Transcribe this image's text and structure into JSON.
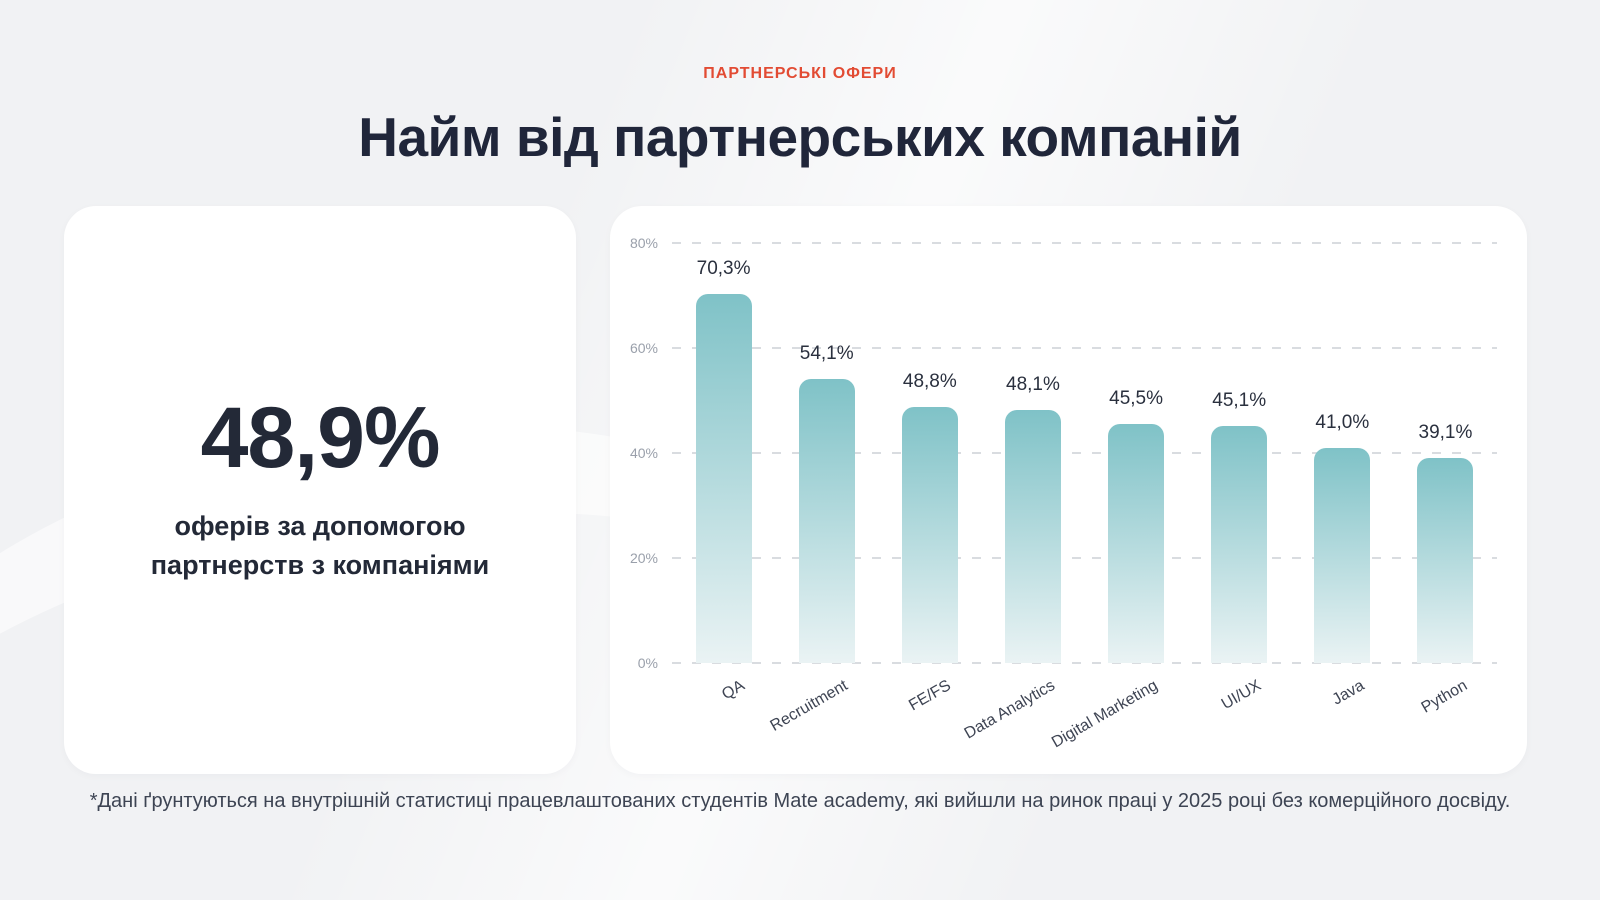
{
  "page": {
    "eyebrow": "ПАРТНЕРСЬКІ ОФЕРИ",
    "title": "Найм від партнерських компаній",
    "footnote": "*Дані ґрунтуються на внутрішній статистиці працевлаштованих студентів Mate academy, які вийшли на ринок праці у 2025 році без комерційного досвіду."
  },
  "stat_card": {
    "value": "48,9%",
    "caption": "оферів за допомогою партнерств з компаніями"
  },
  "chart_data": {
    "type": "bar",
    "categories": [
      "QA",
      "Recruitment",
      "FE/FS",
      "Data Analytics",
      "Digital Marketing",
      "UI/UX",
      "Java",
      "Python"
    ],
    "values": [
      70.3,
      54.1,
      48.8,
      48.1,
      45.5,
      45.1,
      41.0,
      39.1
    ],
    "value_labels": [
      "70,3%",
      "54,1%",
      "48,8%",
      "48,1%",
      "45,5%",
      "45,1%",
      "41,0%",
      "39,1%"
    ],
    "title": "",
    "xlabel": "",
    "ylabel": "",
    "ylim": [
      0,
      80
    ],
    "yticks": [
      "0%",
      "20%",
      "40%",
      "60%",
      "80%"
    ],
    "grid": "horizontal-dashed",
    "legend": "none",
    "bar_color_top": "#7fc2c7",
    "bar_color_bottom": "#eaf3f4"
  },
  "colors": {
    "background": "#f1f2f4",
    "card": "#ffffff",
    "accent_red": "#e24b33",
    "heading_dark": "#20263a",
    "tick_gray": "#9aa0ab",
    "gridline": "#d9dce0"
  }
}
